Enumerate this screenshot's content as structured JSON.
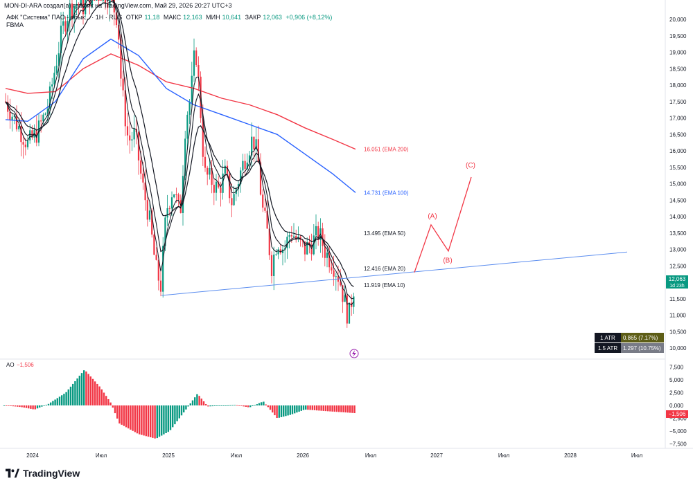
{
  "header": {
    "title_line": "MON-DI-ARA создал(а) график на TradingView.com, Май 29, 2026 20:27 UTC+3",
    "symbol": "АФК \"Система\" ПАО - обык... · 1Н · RUS",
    "open": "ОТКР",
    "open_val": "11,18",
    "high": "МАКС",
    "high_val": "12,163",
    "low": "МИН",
    "low_val": "10,641",
    "close": "ЗАКР",
    "close_val": "12,063",
    "change": "+0,906 (+8,12%)",
    "sub": "FBMA"
  },
  "ao_panel": {
    "label": "AO",
    "value": "−1,506"
  },
  "footer": {
    "brand": "TradingView"
  },
  "atr": [
    {
      "label": "1 ATR",
      "value": "0.865 (7.17%)",
      "color": "#5d5d16"
    },
    {
      "label": "1.5 ATR",
      "value": "1.297 (10.75%)",
      "color": "#787b86"
    }
  ],
  "price_tag": {
    "value": "12,063",
    "time": "1d 23h",
    "color": "#089981"
  },
  "ao_tag": {
    "value": "−1,506",
    "color": "#f23645"
  },
  "chart_data": {
    "type": "candlestick",
    "price_axis": [
      "20,000",
      "19,500",
      "19,000",
      "18,500",
      "18,000",
      "17,500",
      "17,000",
      "16,500",
      "16,000",
      "15,500",
      "15,000",
      "14,500",
      "14,000",
      "13,500",
      "13,000",
      "12,500",
      "12,000",
      "11,500",
      "11,000",
      "10,500",
      "10,000"
    ],
    "ao_axis": [
      "7,500",
      "5,000",
      "2,500",
      "0,000",
      "−2,500",
      "−5,000",
      "−7,500"
    ],
    "time_axis": [
      "2024",
      "Июл",
      "2025",
      "Июл",
      "2026",
      "Июл",
      "2027",
      "Июл",
      "2028",
      "Июл"
    ],
    "ema_labels": [
      {
        "text": "16.051 (EMA 200)",
        "color": "#f23645",
        "price": 16.05
      },
      {
        "text": "14.731 (EMA 100)",
        "color": "#2962ff",
        "price": 14.73
      },
      {
        "text": "13.495 (EMA 50)",
        "color": "#131722",
        "price": 13.5
      },
      {
        "text": "12.416 (EMA 20)",
        "color": "#131722",
        "price": 12.42
      },
      {
        "text": "11.919 (EMA 10)",
        "color": "#131722",
        "price": 11.92
      }
    ],
    "wave_labels": [
      "(A)",
      "(B)",
      "(C)"
    ],
    "wave_path": [
      [
        12.3,
        0
      ],
      [
        13.75,
        1
      ],
      [
        12.95,
        2
      ],
      [
        15.2,
        3
      ]
    ],
    "trendline": {
      "start_price": 11.6,
      "end_price": 12.92
    }
  }
}
